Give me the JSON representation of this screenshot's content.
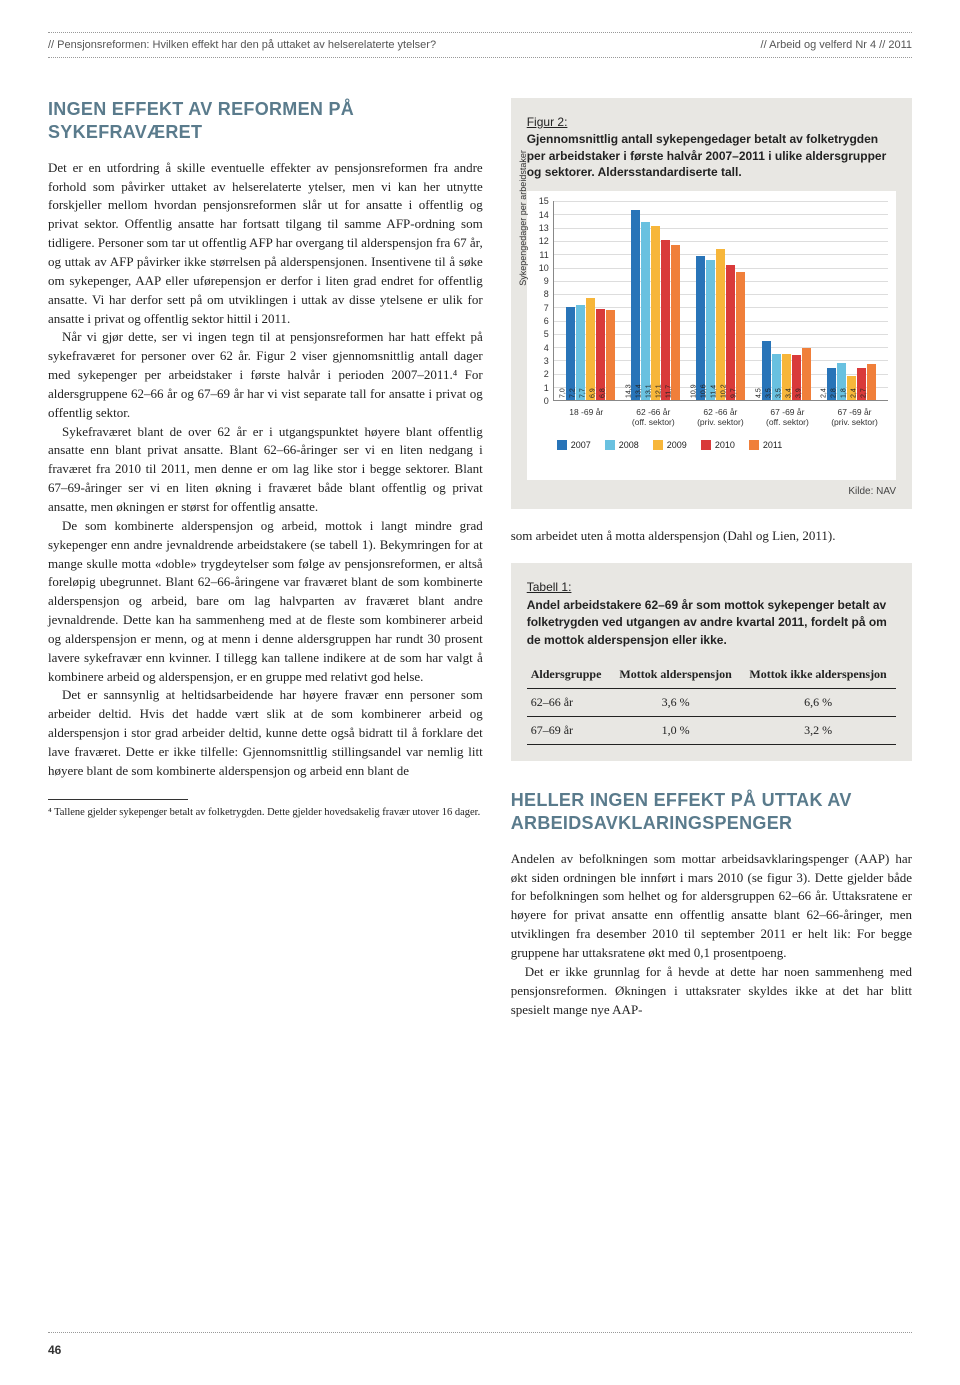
{
  "header": {
    "left": "// Pensjonsreformen: Hvilken effekt har den på uttaket av helserelaterte ytelser?",
    "right": "// Arbeid og velferd Nr 4 // 2011"
  },
  "section1_title": "Ingen effekt av reformen på sykefraværet",
  "para1": "Det er en utfordring å skille eventuelle effekter av pensjonsreformen fra andre forhold som påvirker uttaket av helserelaterte ytelser, men vi kan her utnytte forskjeller mellom hvordan pensjonsreformen slår ut for ansatte i offentlig og privat sektor. Offentlig ansatte har fortsatt tilgang til samme AFP-ordning som tidligere. Personer som tar ut offentlig AFP har overgang til alderspensjon fra 67 år, og uttak av AFP påvirker ikke størrelsen på alderspensjonen. Insentivene til å søke om sykepenger, AAP eller uførepensjon er derfor i liten grad endret for offentlig ansatte. Vi har derfor sett på om utviklingen i uttak av disse ytelsene er ulik for ansatte i privat og offentlig sektor hittil i 2011.",
  "para2": "Når vi gjør dette, ser vi ingen tegn til at pensjonsreformen har hatt effekt på sykefraværet for personer over 62 år. Figur 2 viser gjennomsnittlig antall dager med sykepenger per arbeidstaker i første halvår i perioden 2007–2011.⁴ For aldersgruppene 62–66 år og 67–69 år har vi vist separate tall for ansatte i privat og offentlig sektor.",
  "para3": "Sykefraværet blant de over 62 år er i utgangspunktet høyere blant offentlig ansatte enn blant privat ansatte. Blant 62–66-åringer ser vi en liten nedgang i fraværet fra 2010 til 2011, men denne er om lag like stor i begge sektorer. Blant 67–69-åringer ser vi en liten økning i fraværet både blant offentlig og privat ansatte, men økningen er størst for offentlig ansatte.",
  "para4": "De som kombinerte alderspensjon og arbeid, mottok i langt mindre grad sykepenger enn andre jevnaldrende arbeidstakere (se tabell 1). Bekymringen for at mange skulle motta «doble» trygdeytelser som følge av pensjonsreformen, er altså foreløpig ubegrunnet. Blant 62–66-åringene var fraværet blant de som kombinerte alderspensjon og arbeid, bare om lag halvparten av fraværet blant andre jevnaldrende. Dette kan ha sammenheng med at de fleste som kombinerer arbeid og alderspensjon er menn, og at menn i denne aldersgruppen har rundt 30 prosent lavere sykefravær enn kvinner. I tillegg kan tallene indikere at de som har valgt å kombinere arbeid og alderspensjon, er en gruppe med relativt god helse.",
  "para5": "Det er sannsynlig at heltidsarbeidende har høyere fravær enn personer som arbeider deltid. Hvis det hadde vært slik at de som kombinerer arbeid og alderspensjon i stor grad arbeider deltid, kunne dette også bidratt til å forklare det lave fraværet. Dette er ikke tilfelle: Gjennomsnittlig stillingsandel var nemlig litt høyere blant de som kombinerte alderspensjon og arbeid enn blant de",
  "footnote": "⁴ Tallene gjelder sykepenger betalt av folketrygden. Dette gjelder hovedsakelig fravær utover 16 dager.",
  "figure2": {
    "label": "Figur 2:",
    "caption": "Gjennomsnittlig antall sykepengedager betalt av folketrygden per arbeidstaker i første halvår 2007–2011 i ulike aldersgrupper og sektorer. Aldersstandardiserte tall.",
    "ylabel": "Sykepengedager per arbeidstaker",
    "ymax": 15,
    "ytick_step": 1,
    "categories": [
      "18 -69 år",
      "62 -66 år\n(off. sektor)",
      "62 -66 år\n(priv. sektor)",
      "67 -69 år\n(off. sektor)",
      "67 -69 år\n(priv. sektor)"
    ],
    "series_labels": [
      "2007",
      "2008",
      "2009",
      "2010",
      "2011"
    ],
    "series_colors": [
      "#2874b8",
      "#69c1e0",
      "#f7b63a",
      "#d93a3a",
      "#f07f3a"
    ],
    "data": [
      [
        7.0,
        7.2,
        7.7,
        6.9,
        6.8
      ],
      [
        14.3,
        13.4,
        13.1,
        12.1,
        11.7
      ],
      [
        10.9,
        10.6,
        11.4,
        10.2,
        9.7
      ],
      [
        4.5,
        3.5,
        3.5,
        3.4,
        3.9
      ],
      [
        2.4,
        2.8,
        1.8,
        2.4,
        2.7
      ]
    ],
    "source": "Kilde: NAV"
  },
  "right_para1": "som arbeidet uten å motta alderspensjon (Dahl og Lien, 2011).",
  "table1": {
    "label": "Tabell 1:",
    "caption": "Andel arbeidstakere 62–69 år som mottok sykepenger betalt av folketrygden ved utgangen av andre kvartal 2011, fordelt på om de mottok alderspensjon eller ikke.",
    "columns": [
      "Aldersgruppe",
      "Mottok alderspensjon",
      "Mottok ikke alderspensjon"
    ],
    "rows": [
      [
        "62–66 år",
        "3,6 %",
        "6,6 %"
      ],
      [
        "67–69 år",
        "1,0 %",
        "3,2 %"
      ]
    ]
  },
  "section2_title": "Heller ingen effekt på uttak av arbeidsavklaringspenger",
  "right_para2": "Andelen av befolkningen som mottar arbeidsavklaringspenger (AAP) har økt siden ordningen ble innført i mars 2010 (se figur 3). Dette gjelder både for befolkningen som helhet og for aldersgruppen 62–66 år. Uttaksratene er høyere for privat ansatte enn offentlig ansatte blant 62–66-åringer, men utviklingen fra desember 2010 til september 2011 er helt lik: For begge gruppene har uttaksratene økt med 0,1 prosentpoeng.",
  "right_para3": "Det er ikke grunnlag for å hevde at dette har noen sammenheng med pensjonsreformen. Økningen i uttaksrater skyldes ikke at det har blitt spesielt mange nye AAP-",
  "page_number": "46"
}
